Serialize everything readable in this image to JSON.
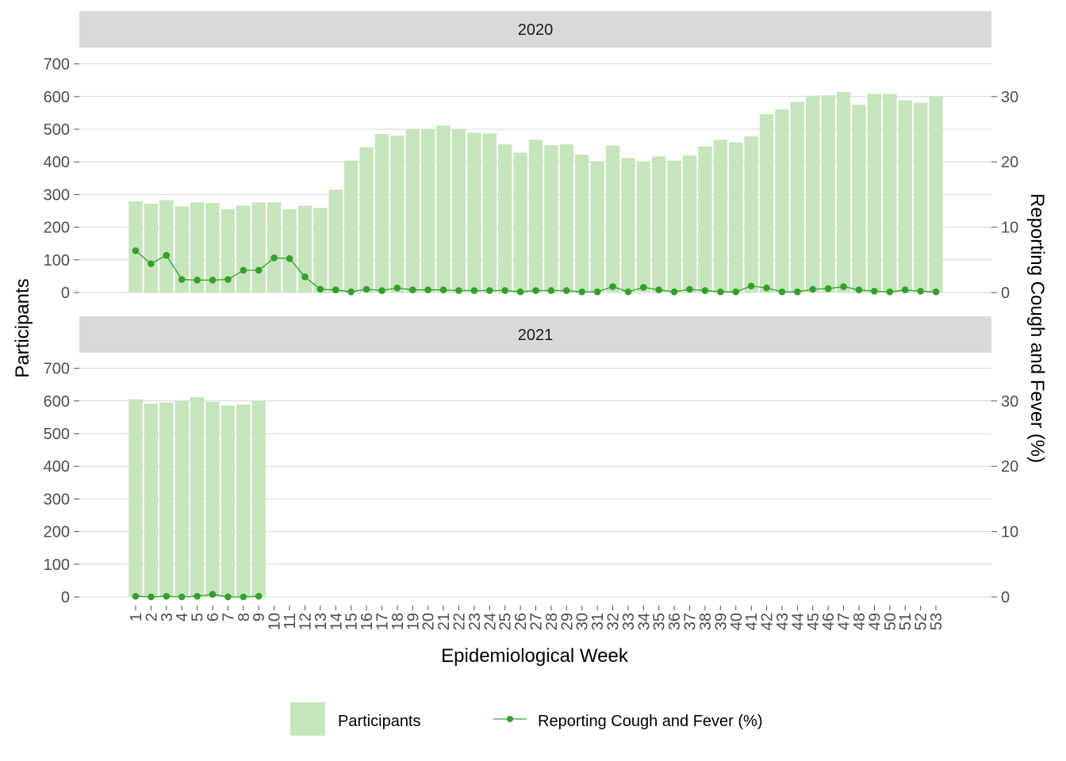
{
  "chart_data": {
    "type": "bar",
    "facets": [
      "2020",
      "2021"
    ],
    "xlabel": "Epidemiological Week",
    "ylabel": "Participants",
    "ylabel_right": "Reporting Cough and Fever (%)",
    "ylim": [
      0,
      700
    ],
    "ylim_right": [
      0,
      35
    ],
    "yticks": [
      0,
      100,
      200,
      300,
      400,
      500,
      600,
      700
    ],
    "yticks_right": [
      0,
      10,
      20,
      30
    ],
    "grid": true,
    "legend_position": "bottom",
    "weeks": [
      1,
      2,
      3,
      4,
      5,
      6,
      7,
      8,
      9,
      10,
      11,
      12,
      13,
      14,
      15,
      16,
      17,
      18,
      19,
      20,
      21,
      22,
      23,
      24,
      25,
      26,
      27,
      28,
      29,
      30,
      31,
      32,
      33,
      34,
      35,
      36,
      37,
      38,
      39,
      40,
      41,
      42,
      43,
      44,
      45,
      46,
      47,
      48,
      49,
      50,
      51,
      52,
      53
    ],
    "series": [
      {
        "name": "Participants",
        "type": "bar",
        "color": "#c7e5bd",
        "data": {
          "2020": [
            279,
            272,
            283,
            264,
            276,
            274,
            255,
            266,
            276,
            276,
            255,
            266,
            259,
            315,
            404,
            445,
            485,
            480,
            501,
            501,
            511,
            500,
            489,
            487,
            454,
            428,
            468,
            451,
            454,
            422,
            402,
            450,
            412,
            401,
            417,
            404,
            420,
            447,
            468,
            460,
            478,
            546,
            561,
            584,
            603,
            604,
            614,
            575,
            608,
            608,
            589,
            581,
            601
          ],
          "2021": [
            605,
            592,
            595,
            600,
            612,
            597,
            586,
            589,
            600
          ]
        }
      },
      {
        "name": "Reporting Cough and Fever (%)",
        "type": "line",
        "color": "#33a02c",
        "data": {
          "2020": [
            6.4,
            4.4,
            5.7,
            2.0,
            1.9,
            1.9,
            2.0,
            3.4,
            3.4,
            5.3,
            5.2,
            2.4,
            0.5,
            0.4,
            0.1,
            0.5,
            0.3,
            0.7,
            0.4,
            0.4,
            0.4,
            0.3,
            0.3,
            0.3,
            0.3,
            0.1,
            0.3,
            0.3,
            0.3,
            0.1,
            0.1,
            0.9,
            0.1,
            0.8,
            0.4,
            0.1,
            0.5,
            0.3,
            0.1,
            0.1,
            1.0,
            0.7,
            0.1,
            0.1,
            0.5,
            0.6,
            0.9,
            0.4,
            0.2,
            0.1,
            0.4,
            0.2,
            0.1
          ],
          "2021": [
            0.1,
            0.0,
            0.1,
            0.0,
            0.1,
            0.4,
            0.0,
            0.0,
            0.1
          ]
        }
      }
    ]
  }
}
